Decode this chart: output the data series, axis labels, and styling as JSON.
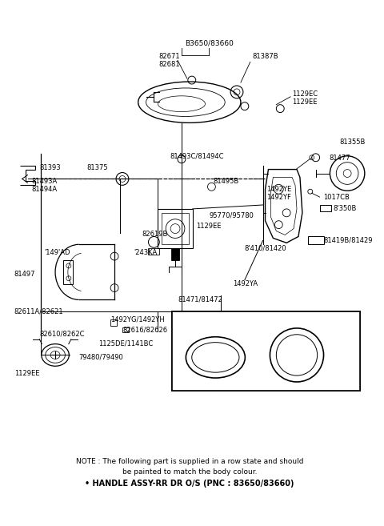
{
  "bg_color": "#ffffff",
  "fig_width": 4.8,
  "fig_height": 6.57,
  "dpi": 100,
  "note_line1": "NOTE : The following part is supplied in a row state and should",
  "note_line2": "be painted to match the body colour.",
  "note_line3": "• HANDLE ASSY-RR DR O/S (PNC : 83650/83660)"
}
